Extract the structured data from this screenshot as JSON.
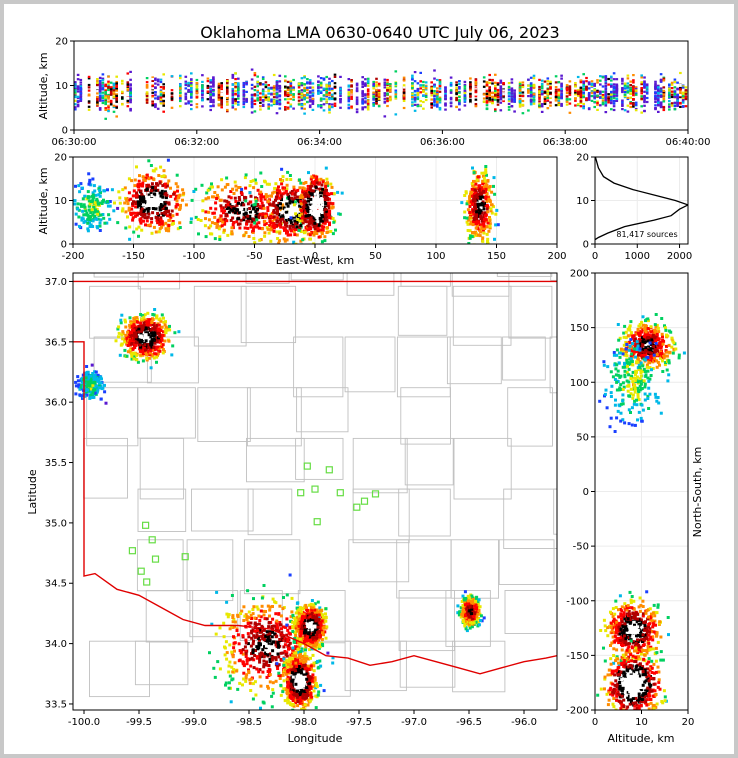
{
  "title": "Oklahoma LMA 0630-0640 UTC July 06, 2023",
  "colors": {
    "border": "#e00000",
    "counties": "#c0c0c0",
    "stations": "#66dd44",
    "density": [
      "#5a18d0",
      "#1a40ff",
      "#00b8e8",
      "#00d060",
      "#e8e800",
      "#ff8c00",
      "#ff0000",
      "#b00000",
      "#000000",
      "#ffffff"
    ]
  },
  "chart_data": [
    {
      "id": "time-height",
      "type": "heatmap",
      "xlabel": "",
      "ylabel": "Altitude, km",
      "x_ticks": [
        "06:30:00",
        "06:32:00",
        "06:34:00",
        "06:36:00",
        "06:38:00",
        "06:40:00"
      ],
      "x_range_minutes": [
        0,
        10
      ],
      "ylim": [
        0,
        20
      ],
      "y_ticks": [
        0,
        10,
        20
      ],
      "density_core_altitude_km": [
        5,
        12
      ]
    },
    {
      "id": "east-west-altitude",
      "type": "heatmap",
      "xlabel": "East-West, km",
      "ylabel": "Altitude, km",
      "xlim": [
        -200,
        200
      ],
      "ylim": [
        0,
        20
      ],
      "x_ticks": [
        -200,
        -150,
        -100,
        -50,
        0,
        50,
        100,
        150,
        200
      ],
      "y_ticks": [
        0,
        10,
        20
      ],
      "clusters": [
        {
          "x": -185,
          "y": 9,
          "spread_x": 12,
          "spread_y": 4,
          "weight": 0.4
        },
        {
          "x": -135,
          "y": 10,
          "spread_x": 18,
          "spread_y": 5,
          "weight": 0.9
        },
        {
          "x": -60,
          "y": 8,
          "spread_x": 28,
          "spread_y": 5,
          "weight": 0.8
        },
        {
          "x": -20,
          "y": 8,
          "spread_x": 20,
          "spread_y": 5,
          "weight": 0.9
        },
        {
          "x": 0,
          "y": 9,
          "spread_x": 10,
          "spread_y": 5,
          "weight": 1.0
        },
        {
          "x": 135,
          "y": 9,
          "spread_x": 8,
          "spread_y": 6,
          "weight": 0.8
        }
      ]
    },
    {
      "id": "altitude-histogram",
      "type": "line",
      "xlim": [
        0,
        2200
      ],
      "ylim": [
        0,
        20
      ],
      "x_ticks": [
        0,
        1000,
        2000
      ],
      "y_ticks": [
        0,
        10,
        20
      ],
      "annotation": "81,417 sources",
      "points": [
        {
          "x": 0,
          "y": 1
        },
        {
          "x": 80,
          "y": 1.5
        },
        {
          "x": 300,
          "y": 2.5
        },
        {
          "x": 700,
          "y": 4
        },
        {
          "x": 1400,
          "y": 5.5
        },
        {
          "x": 1800,
          "y": 6.5
        },
        {
          "x": 2000,
          "y": 8
        },
        {
          "x": 2200,
          "y": 9
        },
        {
          "x": 1900,
          "y": 10
        },
        {
          "x": 1500,
          "y": 11
        },
        {
          "x": 900,
          "y": 12.5
        },
        {
          "x": 450,
          "y": 14
        },
        {
          "x": 200,
          "y": 15.5
        },
        {
          "x": 80,
          "y": 17.5
        },
        {
          "x": 10,
          "y": 20
        }
      ]
    },
    {
      "id": "plan-view",
      "type": "heatmap",
      "xlabel": "Longitude",
      "ylabel": "Latitude",
      "xlim": [
        -100.1,
        -95.7
      ],
      "ylim": [
        33.45,
        37.07
      ],
      "x_ticks": [
        -100.0,
        -99.5,
        -99.0,
        -98.5,
        -98.0,
        -97.5,
        -97.0,
        -96.5,
        -96.0
      ],
      "y_ticks": [
        33.5,
        34.0,
        34.5,
        35.0,
        35.5,
        36.0,
        36.5,
        37.0
      ],
      "clusters": [
        {
          "x": -99.45,
          "y": 36.55,
          "spread_x": 0.15,
          "spread_y": 0.12,
          "weight": 0.9
        },
        {
          "x": -99.95,
          "y": 36.15,
          "spread_x": 0.08,
          "spread_y": 0.08,
          "weight": 0.35
        },
        {
          "x": -98.35,
          "y": 34.0,
          "spread_x": 0.3,
          "spread_y": 0.28,
          "weight": 0.8
        },
        {
          "x": -97.95,
          "y": 34.15,
          "spread_x": 0.1,
          "spread_y": 0.12,
          "weight": 0.9
        },
        {
          "x": -98.05,
          "y": 33.7,
          "spread_x": 0.1,
          "spread_y": 0.15,
          "weight": 0.95
        },
        {
          "x": -96.5,
          "y": 34.28,
          "spread_x": 0.06,
          "spread_y": 0.08,
          "weight": 0.8
        }
      ],
      "stations": [
        {
          "lon": -97.97,
          "lat": 35.47
        },
        {
          "lon": -97.77,
          "lat": 35.44
        },
        {
          "lon": -98.03,
          "lat": 35.25
        },
        {
          "lon": -97.9,
          "lat": 35.28
        },
        {
          "lon": -97.67,
          "lat": 35.25
        },
        {
          "lon": -97.35,
          "lat": 35.24
        },
        {
          "lon": -97.45,
          "lat": 35.18
        },
        {
          "lon": -97.52,
          "lat": 35.13
        },
        {
          "lon": -97.88,
          "lat": 35.01
        },
        {
          "lon": -99.44,
          "lat": 34.98
        },
        {
          "lon": -99.38,
          "lat": 34.86
        },
        {
          "lon": -99.56,
          "lat": 34.77
        },
        {
          "lon": -99.35,
          "lat": 34.7
        },
        {
          "lon": -99.08,
          "lat": 34.72
        },
        {
          "lon": -99.48,
          "lat": 34.6
        },
        {
          "lon": -99.43,
          "lat": 34.51
        }
      ]
    },
    {
      "id": "altitude-north-south",
      "type": "heatmap",
      "xlabel": "Altitude, km",
      "ylabel": "North-South, km",
      "xlim": [
        0,
        20
      ],
      "ylim": [
        -200,
        200
      ],
      "x_ticks": [
        0,
        10,
        20
      ],
      "y_ticks": [
        -200,
        -150,
        -100,
        -50,
        0,
        50,
        100,
        150,
        200
      ],
      "clusters": [
        {
          "x": 11,
          "y": 135,
          "spread_x": 4,
          "spread_y": 15,
          "weight": 0.8
        },
        {
          "x": 8,
          "y": 100,
          "spread_x": 4,
          "spread_y": 25,
          "weight": 0.4
        },
        {
          "x": 8,
          "y": -125,
          "spread_x": 4,
          "spread_y": 18,
          "weight": 0.9
        },
        {
          "x": 8,
          "y": -175,
          "spread_x": 4,
          "spread_y": 20,
          "weight": 1.0
        }
      ]
    }
  ]
}
